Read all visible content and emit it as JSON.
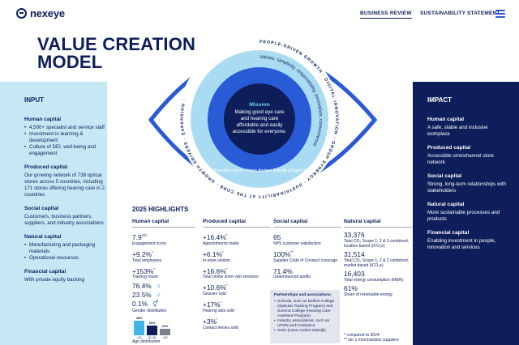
{
  "header": {
    "logo_text": "nexeye",
    "nav": [
      "BUSINESS REVIEW",
      "SUSTAINABILITY STATEMENT"
    ]
  },
  "title": [
    "VALUE CREATION",
    "MODEL"
  ],
  "eye": {
    "mission_title": "Mission",
    "mission_text": "Making good eye care and hearing care affordable and easily accessible for everyone.",
    "values_text": "Values: simplicity, responsibility, innovation, convenience",
    "founder_text": "Our founder's eyes – Hans Anders Zakeljk (Zegel-Odds)",
    "ring_text": "PEOPLE-DRIVEN GROWTH · DIGITAL INNOVATION · GROUP SYNERGY · SUSTAINABILITY AT THE CORE · GROWTH DRIVERS · EXPANSION ·"
  },
  "input": {
    "title": "INPUT",
    "human": {
      "title": "Human capital",
      "items": [
        "4,500+ specialist and service staff",
        "Investment in learning & development",
        "Culture of DEI, well-being and engagement"
      ]
    },
    "produced": {
      "title": "Produced capital",
      "text": "Our growing network of 738 optical stores across 5 countries, including 171 stores offering hearing care in 2 countries"
    },
    "social": {
      "title": "Social capital",
      "text": "Customers, business partners, suppliers, and industry associations"
    },
    "natural": {
      "title": "Natural capital",
      "items": [
        "Manufacturing and packaging materials",
        "Operational resources"
      ]
    },
    "financial": {
      "title": "Financial capital",
      "text": "With private equity backing"
    }
  },
  "impact": {
    "title": "IMPACT",
    "items": [
      {
        "title": "Human capital",
        "text": "A safe, stable and inclusive workplace"
      },
      {
        "title": "Produced capital",
        "text": "Accessible omnichannel store network"
      },
      {
        "title": "Social capital",
        "text": "Strong, long-term relationships with stakeholders"
      },
      {
        "title": "Natural capital",
        "text": "More sustainable processes and products"
      },
      {
        "title": "Financial capital",
        "text": "Enabling investment in people, innovation and services"
      }
    ]
  },
  "highlights": {
    "title": "2025 HIGHLIGHTS",
    "human": {
      "title": "Human capital",
      "stats": [
        {
          "value": "7.9",
          "sup": "/10",
          "label": "Engagement score"
        },
        {
          "value": "+9.2%",
          "sup": "*",
          "label": "Total employees"
        },
        {
          "value": "+153%",
          "sup": "*",
          "label": "Training hours"
        }
      ],
      "gender": [
        {
          "value": "76.4%",
          "symbol": "♀"
        },
        {
          "value": "23.5%",
          "symbol": "♂"
        },
        {
          "value": "0.1%",
          "symbol": "⚥"
        }
      ],
      "gender_label": "Gender distribution",
      "age_label": "Age distribution",
      "age": [
        {
          "pct": "48%",
          "label": "<30",
          "value": 48,
          "color": "#3fb6ea"
        },
        {
          "pct": "33%",
          "label": "30–50",
          "value": 33,
          "color": "#0d1e5a"
        },
        {
          "pct": "20%",
          "label": ">50",
          "value": 20,
          "color": "#7d8189"
        }
      ]
    },
    "produced": {
      "title": "Produced capital",
      "stats": [
        {
          "value": "+16.4%",
          "sup": "*",
          "label": "Appointments made"
        },
        {
          "value": "+6.1%",
          "sup": "*",
          "label": "In-store visitors"
        },
        {
          "value": "+16.6%",
          "sup": "*",
          "label": "Total online store visit sessions"
        },
        {
          "value": "+10.6%",
          "sup": "*",
          "label": "Glasses sold"
        },
        {
          "value": "+17%",
          "sup": "*",
          "label": "Hearing aids sold"
        },
        {
          "value": "+3%",
          "sup": "*",
          "label": "Contact lenses sold"
        }
      ]
    },
    "social": {
      "title": "Social capital",
      "stats": [
        {
          "value": "65",
          "sup": "",
          "label": "NPS customer satisfaction"
        },
        {
          "value": "100%",
          "sup": "**",
          "label": "Supplier Code of Conduct coverage"
        },
        {
          "value": "71.4%",
          "sup": "",
          "label": "Unannounced audits"
        }
      ],
      "partners_title": "Partnerships and associations:",
      "partners": [
        "Schools, such as Deltion College (Optician Training Program) and Summa College (Hearing Care Assistant Program)",
        "Industry associations, such as UFON and FedOptica",
        "Seeh (Hans Anders Zakeljk)"
      ]
    },
    "natural": {
      "title": "Natural capital",
      "stats": [
        {
          "value": "33,376",
          "sup": "",
          "label": "Total CO₂ Scope 1, 2 & 3 combined, location based (tCO₂e)"
        },
        {
          "value": "31,514",
          "sup": "",
          "label": "Total CO₂ Scope 1, 2 & 3 combined, market based (tCO₂e)"
        },
        {
          "value": "16,403",
          "sup": "",
          "label": "Total energy consumption (MWh)"
        },
        {
          "value": "61%",
          "sup": "",
          "label": "Share of renewable energy"
        }
      ]
    },
    "footnotes": [
      "*   compared to 2024",
      "** tier 1 merchandise suppliers"
    ]
  }
}
